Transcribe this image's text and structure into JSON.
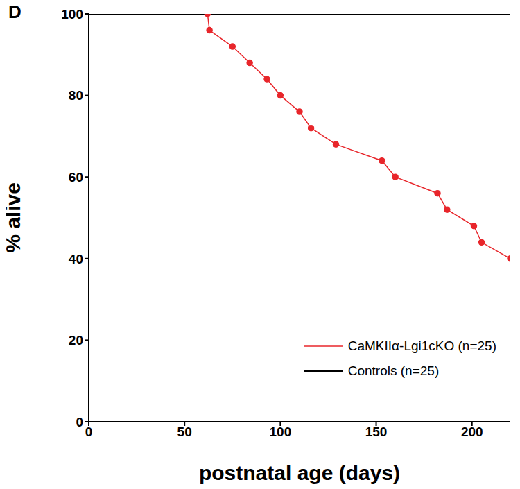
{
  "chart_data": {
    "type": "line",
    "panel_label": "D",
    "x_label": "postnatal age (days)",
    "y_label": "% alive",
    "xlim": [
      0,
      220
    ],
    "xticks": [
      0,
      50,
      100,
      150,
      200
    ],
    "ylim": [
      0,
      100
    ],
    "yticks": [
      0,
      20,
      40,
      60,
      80,
      100
    ],
    "grid": false,
    "legend": "lower right",
    "series": [
      {
        "name": "CaMKIIα-Lgi1cKO (n=25)",
        "color": "#e8262b",
        "marker": "circle",
        "line_style": "solid",
        "x": [
          62,
          63,
          75,
          84,
          93,
          100,
          110,
          116,
          129,
          153,
          160,
          182,
          187,
          201,
          205,
          220
        ],
        "values": [
          100,
          96,
          92,
          88,
          84,
          80,
          76,
          72,
          68,
          64,
          60,
          56,
          52,
          48,
          44,
          40
        ]
      },
      {
        "name": "Controls (n=25)",
        "color": "#000000",
        "marker": "none",
        "line_style": "solid",
        "x": [
          0,
          220
        ],
        "values": [
          100,
          100
        ]
      }
    ]
  }
}
